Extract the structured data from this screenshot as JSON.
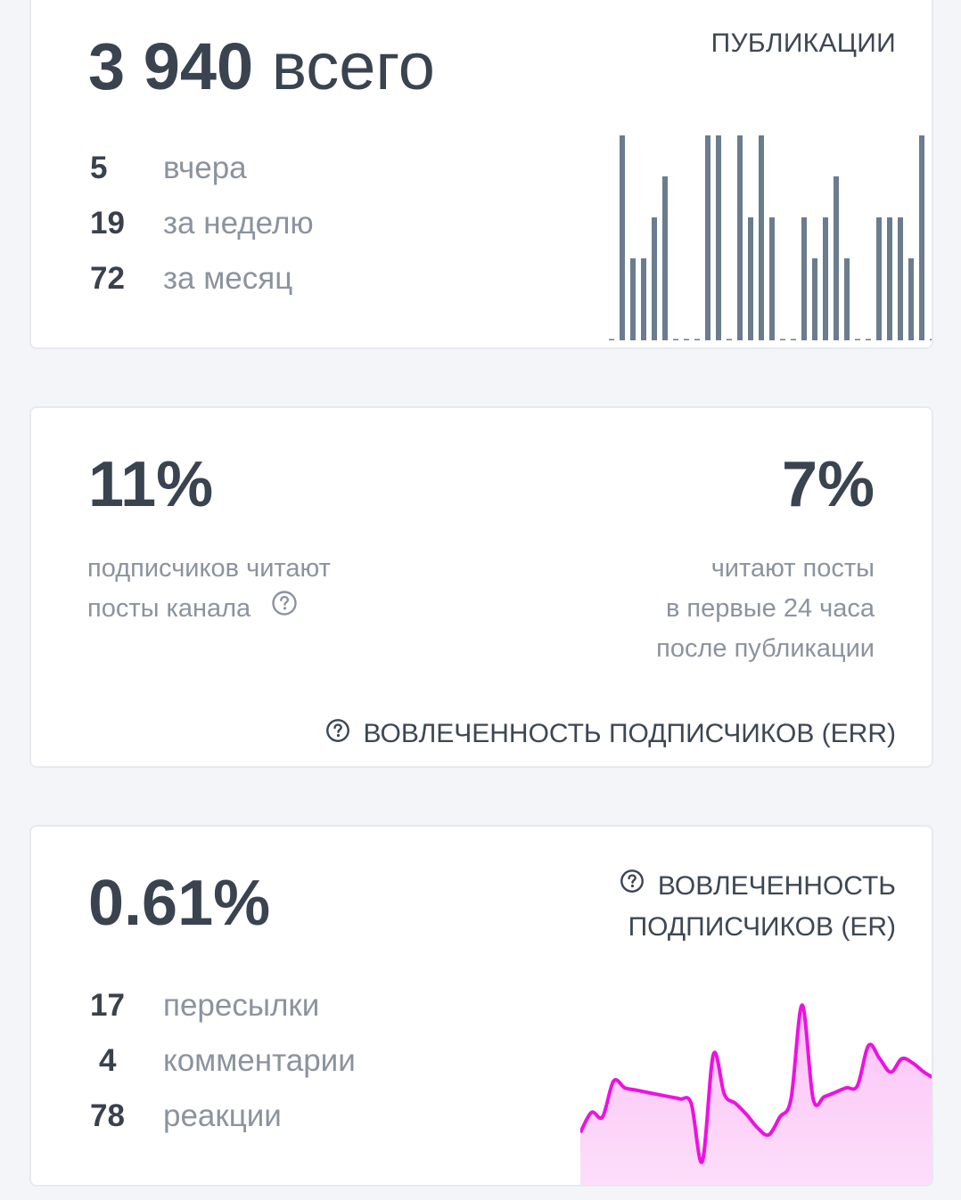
{
  "publications": {
    "total_value": "3 940",
    "total_unit": "всего",
    "title": "ПУБЛИКАЦИИ",
    "stats": [
      {
        "num": "5",
        "label": "вчера"
      },
      {
        "num": "19",
        "label": "за неделю"
      },
      {
        "num": "72",
        "label": "за месяц"
      }
    ],
    "bar_color": "#6b7c8f"
  },
  "err": {
    "left_value": "11%",
    "left_caption_1": "подписчиков читают",
    "left_caption_2": "посты канала",
    "right_value": "7%",
    "right_caption_1": "читают посты",
    "right_caption_2": "в первые 24 часа",
    "right_caption_3": "после публикации",
    "footer_label": "ВОВЛЕЧЕННОСТЬ ПОДПИСЧИКОВ (ERR)"
  },
  "er": {
    "value": "0.61%",
    "title_1": "ВОВЛЕЧЕННОСТЬ",
    "title_2": "ПОДПИСЧИКОВ (ER)",
    "stats": [
      {
        "num": "17",
        "label": "пересылки"
      },
      {
        "num": "4",
        "label": "комментарии"
      },
      {
        "num": "78",
        "label": "реакции"
      }
    ],
    "line_color": "#ee11e2",
    "fill_color": "#fbc3f6"
  },
  "chart_data": [
    {
      "type": "bar",
      "values": [
        0,
        5,
        2,
        2,
        3,
        4,
        0,
        0,
        0,
        5,
        5,
        0,
        5,
        3,
        5,
        3,
        0,
        0,
        3,
        2,
        3,
        4,
        2,
        0,
        0,
        3,
        3,
        3,
        2,
        5,
        0,
        0,
        5,
        1
      ],
      "ylim": [
        0,
        5
      ]
    },
    {
      "type": "area",
      "values": [
        0.25,
        0.34,
        0.32,
        0.48,
        0.45,
        0.44,
        0.43,
        0.42,
        0.41,
        0.4,
        0.38,
        0.12,
        0.6,
        0.42,
        0.38,
        0.33,
        0.27,
        0.24,
        0.32,
        0.4,
        0.82,
        0.4,
        0.41,
        0.43,
        0.45,
        0.46,
        0.64,
        0.58,
        0.52,
        0.58,
        0.56,
        0.52,
        0.49
      ],
      "ylim": [
        0,
        1
      ]
    }
  ]
}
